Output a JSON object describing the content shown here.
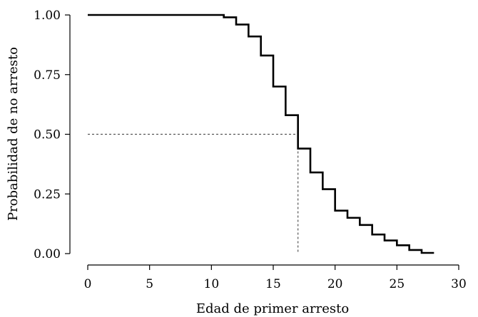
{
  "chart_data": {
    "type": "line",
    "step": true,
    "title": "",
    "xlabel": "Edad de primer arresto",
    "ylabel": "Probabilidad de no arresto",
    "xlim": [
      0,
      31
    ],
    "ylim": [
      0,
      1
    ],
    "xticks": [
      0,
      5,
      10,
      15,
      20,
      25,
      30
    ],
    "xtick_labels": [
      "0",
      "5",
      "10",
      "15",
      "20",
      "25",
      "30"
    ],
    "yticks": [
      0,
      0.25,
      0.5,
      0.75,
      1
    ],
    "ytick_labels": [
      "0.00",
      "0.25",
      "0.50",
      "0.75",
      "1.00"
    ],
    "grid": false,
    "series": [
      {
        "x": [
          0,
          11,
          12,
          13,
          14,
          15,
          16,
          17,
          18,
          19,
          20,
          21,
          22,
          23,
          24,
          25,
          26,
          27,
          28
        ],
        "y": [
          1.0,
          0.99,
          0.96,
          0.91,
          0.83,
          0.7,
          0.58,
          0.44,
          0.34,
          0.27,
          0.18,
          0.15,
          0.12,
          0.08,
          0.055,
          0.035,
          0.015,
          0.003,
          0.003
        ],
        "color": "#000000"
      }
    ],
    "reference_lines": [
      {
        "kind": "median",
        "x": 17,
        "y": 0.5,
        "style": "dotted",
        "color": "#555555"
      }
    ]
  }
}
